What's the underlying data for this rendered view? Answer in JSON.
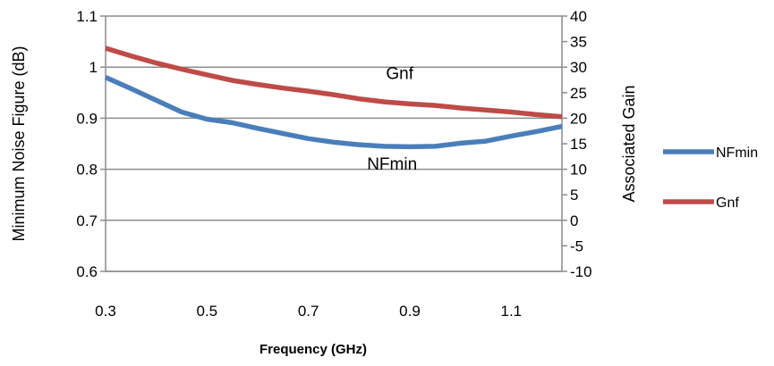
{
  "chart_data": {
    "type": "line",
    "title": "",
    "xlabel": "Frequency (GHz)",
    "ylabel": "Minimum Noise Figure (dB)",
    "y2label": "Associated Gain",
    "xlim": [
      0.3,
      1.2
    ],
    "ylim": [
      0.6,
      1.1
    ],
    "y2lim": [
      -10,
      40
    ],
    "x_ticks": [
      "0.3",
      "0.5",
      "0.7",
      "0.9",
      "1.1"
    ],
    "x_tick_values": [
      0.3,
      0.5,
      0.7,
      0.9,
      1.1
    ],
    "y_ticks": [
      "0.6",
      "0.7",
      "0.8",
      "0.9",
      "1",
      "1.1"
    ],
    "y_tick_values": [
      0.6,
      0.7,
      0.8,
      0.9,
      1.0,
      1.1
    ],
    "y2_ticks": [
      "-10",
      "-5",
      "0",
      "5",
      "10",
      "15",
      "20",
      "25",
      "30",
      "35",
      "40"
    ],
    "y2_tick_values": [
      -10,
      -5,
      0,
      5,
      10,
      15,
      20,
      25,
      30,
      35,
      40
    ],
    "grid": "horizontal",
    "legend_position": "right",
    "series": [
      {
        "name": "NFmin",
        "axis": "left",
        "color": "#4a7ebb",
        "x": [
          0.3,
          0.35,
          0.4,
          0.45,
          0.5,
          0.55,
          0.6,
          0.65,
          0.7,
          0.75,
          0.8,
          0.85,
          0.9,
          0.95,
          1.0,
          1.05,
          1.1,
          1.15,
          1.2
        ],
        "y": [
          0.98,
          0.958,
          0.935,
          0.912,
          0.898,
          0.891,
          0.88,
          0.87,
          0.86,
          0.853,
          0.848,
          0.845,
          0.844,
          0.845,
          0.851,
          0.855,
          0.865,
          0.874,
          0.884
        ]
      },
      {
        "name": "Gnf",
        "axis": "right",
        "color": "#be4b48",
        "x": [
          0.3,
          0.35,
          0.4,
          0.45,
          0.5,
          0.55,
          0.6,
          0.65,
          0.7,
          0.75,
          0.8,
          0.85,
          0.9,
          0.95,
          1.0,
          1.05,
          1.1,
          1.15,
          1.2
        ],
        "y": [
          33.7,
          32.2,
          30.8,
          29.6,
          28.5,
          27.4,
          26.6,
          25.9,
          25.3,
          24.6,
          23.8,
          23.2,
          22.8,
          22.5,
          22.0,
          21.6,
          21.2,
          20.7,
          20.3
        ]
      }
    ],
    "annotations": [
      {
        "text": "Gnf",
        "x": 0.88,
        "y": 0.977
      },
      {
        "text": "NFmin",
        "x": 0.865,
        "y": 0.799
      }
    ]
  }
}
